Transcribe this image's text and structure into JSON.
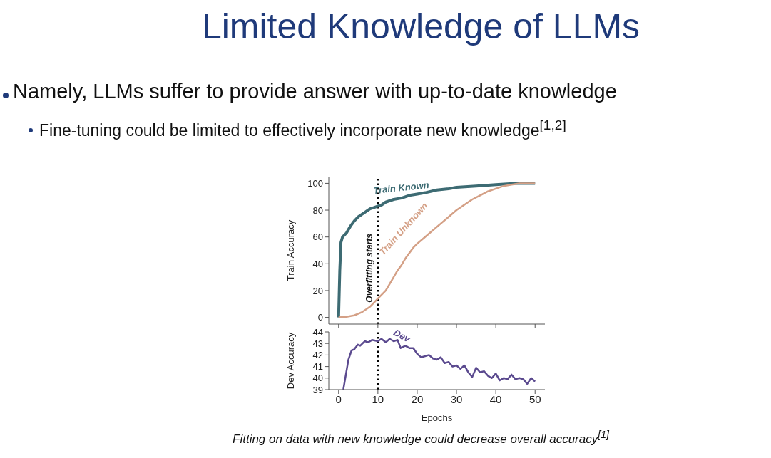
{
  "chart_data": [
    {
      "type": "line",
      "title": "Limited Knowledge of LLMs",
      "annotations": [
        "Namely, LLMs suffer to provide answer with up-to-date knowledge",
        "Fine-tuning could be limited to effectively incorporate new knowledge$^{[1,2]}$",
        "Fitting on data with new knowledge could decrease overall accuracy$^{[1]}$"
      ],
      "ylabel": "Train Accuracy",
      "xlim": [
        -2.5,
        52.5
      ],
      "xticks": [
        {
          "value": 0,
          "label": null
        },
        {
          "value": 10,
          "label": null
        },
        {
          "value": 20,
          "label": null
        },
        {
          "value": 30,
          "label": null
        },
        {
          "value": 40,
          "label": null
        },
        {
          "value": 50,
          "label": null
        }
      ],
      "ylim": [
        -5,
        105
      ],
      "yticks": [
        0,
        20,
        40,
        60,
        80,
        100
      ],
      "tick_labels": "y",
      "ref_lines": [
        {
          "axis": "x",
          "value": 10,
          "label": "Overfitting starts",
          "color": "#000000",
          "line_style": "dotted"
        }
      ],
      "series": [
        {
          "name": "Train Known",
          "color": "#3d6b73",
          "x": [
            0,
            0.3,
            0.6,
            1,
            2,
            3,
            4,
            5,
            6,
            7,
            8,
            9,
            10,
            11,
            12,
            14,
            16,
            18,
            20,
            22,
            25,
            28,
            30,
            35,
            40,
            45,
            50
          ],
          "values": [
            0,
            35,
            56,
            60,
            63,
            68,
            72,
            75,
            77,
            79,
            81,
            82,
            83,
            84,
            86,
            88,
            89,
            91,
            92,
            93,
            95,
            96,
            97,
            98,
            99,
            100,
            100
          ]
        },
        {
          "name": "Train Unknown",
          "color": "#d4a086",
          "x": [
            0,
            2,
            4,
            6,
            8,
            10,
            12,
            13,
            14,
            15,
            16,
            17,
            18,
            19,
            20,
            22,
            24,
            26,
            28,
            30,
            32,
            34,
            36,
            38,
            40,
            42,
            44,
            46,
            50
          ],
          "values": [
            0,
            0.5,
            1.5,
            4,
            8,
            14,
            20,
            25,
            30,
            35,
            39,
            44,
            48,
            52,
            55,
            60,
            65,
            70,
            75,
            80,
            84,
            88,
            91,
            94,
            96,
            98,
            99,
            100,
            100
          ]
        }
      ]
    },
    {
      "type": "line",
      "ylabel": "Dev Accuracy",
      "xlabel": "Epochs",
      "xlim": [
        -2.5,
        52.5
      ],
      "xticks": [
        0,
        10,
        20,
        30,
        40,
        50
      ],
      "ylim": [
        39,
        44
      ],
      "yticks": [
        39,
        40,
        41,
        42,
        43,
        44
      ],
      "ref_lines": [
        {
          "axis": "x",
          "value": 10,
          "color": "#000000",
          "line_style": "dotted"
        }
      ],
      "series": [
        {
          "name": "Dev",
          "color": "#5b4a8f",
          "x": [
            1.2,
            1.8,
            2.5,
            3.3,
            4,
            4.9,
            5.5,
            6.7,
            7.5,
            8.5,
            10,
            10.9,
            12,
            13,
            14,
            15,
            15.8,
            17,
            18,
            19,
            20,
            21,
            22,
            23,
            24,
            25,
            26,
            27,
            28,
            29,
            30,
            31,
            32,
            33,
            34,
            35,
            36,
            37,
            38,
            39,
            40,
            41,
            42,
            43,
            44,
            45,
            46,
            47,
            48,
            49,
            50
          ],
          "values": [
            39,
            40.2,
            41.6,
            42.4,
            42.5,
            42.9,
            42.8,
            43.2,
            43.1,
            43.3,
            43.2,
            43.4,
            43.1,
            43.4,
            43.2,
            43.3,
            42.6,
            42.8,
            42.6,
            42.6,
            42.1,
            41.8,
            41.9,
            42,
            41.7,
            41.6,
            41.8,
            41.3,
            41.4,
            41,
            41.1,
            40.8,
            41.1,
            40.5,
            40.1,
            40.9,
            40.5,
            40.6,
            40.2,
            40,
            40.4,
            39.8,
            40,
            39.9,
            40.3,
            39.9,
            40,
            39.9,
            39.5,
            40,
            39.7
          ]
        }
      ]
    }
  ]
}
